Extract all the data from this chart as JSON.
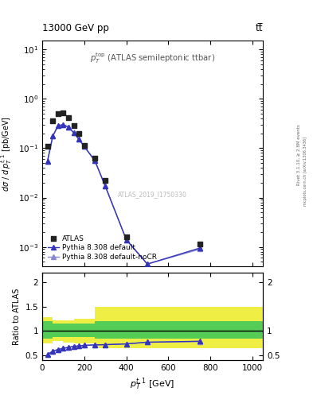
{
  "title_left": "13000 GeV pp",
  "title_right": "tt̅",
  "watermark": "ATLAS_2019_I1750330",
  "rivet_text": "Rivet 3.1.10, ≥ 2.8M events",
  "mcplots_text": "mcplots.cern.ch [arXiv:1306.3436]",
  "annotation": "p_T^{top} (ATLAS semileptonic ttbar)",
  "atlas_x": [
    25,
    50,
    75,
    100,
    125,
    150,
    175,
    200,
    250,
    300,
    400,
    750
  ],
  "atlas_y": [
    0.108,
    0.36,
    0.5,
    0.51,
    0.42,
    0.29,
    0.195,
    0.115,
    0.063,
    0.022,
    0.0016,
    0.00115
  ],
  "pythia_x": [
    25,
    50,
    75,
    100,
    125,
    150,
    175,
    200,
    250,
    300,
    400,
    500,
    750
  ],
  "pythia_y": [
    0.055,
    0.175,
    0.285,
    0.3,
    0.265,
    0.205,
    0.15,
    0.108,
    0.056,
    0.017,
    0.0014,
    0.00045,
    0.00095
  ],
  "nocr_x": [
    25,
    50,
    75,
    100,
    125,
    150,
    175,
    200,
    250,
    300,
    400,
    500,
    750
  ],
  "nocr_y": [
    0.055,
    0.175,
    0.285,
    0.3,
    0.265,
    0.205,
    0.15,
    0.108,
    0.056,
    0.017,
    0.0014,
    0.00045,
    0.0009
  ],
  "ratio_x": [
    25,
    50,
    75,
    100,
    125,
    150,
    175,
    200,
    250,
    300,
    400,
    500,
    750
  ],
  "ratio_py": [
    0.52,
    0.585,
    0.62,
    0.645,
    0.665,
    0.685,
    0.695,
    0.705,
    0.715,
    0.72,
    0.735,
    0.77,
    0.79
  ],
  "ratio_nocr": [
    0.52,
    0.585,
    0.62,
    0.645,
    0.665,
    0.685,
    0.695,
    0.705,
    0.715,
    0.72,
    0.735,
    0.77,
    0.785
  ],
  "band_edges": [
    0,
    50,
    50,
    100,
    100,
    150,
    150,
    250,
    250,
    350,
    350,
    450,
    450,
    1050
  ],
  "green_up": [
    1.2,
    1.2,
    1.15,
    1.15,
    1.15,
    1.15,
    1.15,
    1.15,
    1.2,
    1.2,
    1.2,
    1.2,
    1.2,
    1.2
  ],
  "green_lo": [
    0.85,
    0.85,
    0.88,
    0.88,
    0.87,
    0.87,
    0.88,
    0.88,
    0.85,
    0.85,
    0.85,
    0.85,
    0.85,
    0.85
  ],
  "yellow_up": [
    1.28,
    1.28,
    1.22,
    1.22,
    1.22,
    1.22,
    1.25,
    1.25,
    1.5,
    1.5,
    1.5,
    1.5,
    1.5,
    1.5
  ],
  "yellow_lo": [
    0.75,
    0.75,
    0.79,
    0.79,
    0.76,
    0.76,
    0.75,
    0.75,
    0.65,
    0.65,
    0.65,
    0.65,
    0.65,
    0.65
  ],
  "xlim": [
    0,
    1050
  ],
  "ylim_main": [
    0.0004,
    15
  ],
  "ylim_ratio": [
    0.4,
    2.2
  ],
  "ratio_yticks": [
    0.5,
    1.0,
    1.5,
    2.0
  ],
  "ratio_ytick_labels": [
    "0.5",
    "1",
    "1.5",
    "2"
  ],
  "color_atlas": "#222222",
  "color_pythia": "#3333bb",
  "color_nocr": "#8888cc",
  "color_green": "#55cc55",
  "color_yellow": "#eeee44",
  "bg_color": "#ffffff"
}
